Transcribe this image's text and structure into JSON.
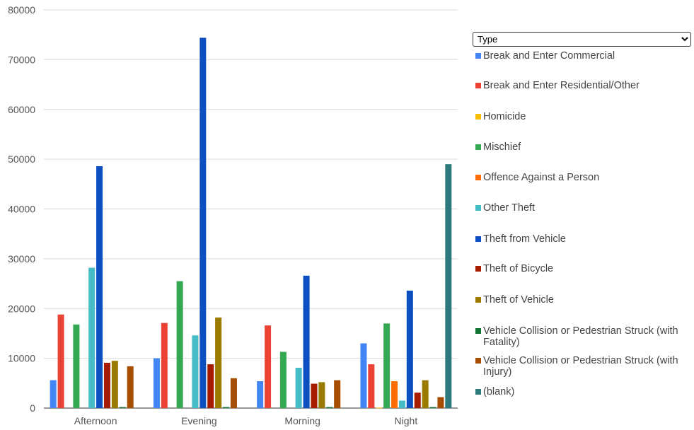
{
  "filter": {
    "selected": "Type"
  },
  "chart_data": {
    "type": "bar",
    "title": "",
    "xlabel": "",
    "ylabel": "",
    "ylim": [
      0,
      80000
    ],
    "yticks": [
      "0",
      "10000",
      "20000",
      "30000",
      "40000",
      "50000",
      "60000",
      "70000",
      "80000"
    ],
    "categories": [
      "Afternoon",
      "Evening",
      "Morning",
      "Night"
    ],
    "legend_position": "right",
    "series": [
      {
        "name": "Break and Enter Commercial",
        "color": "#4285f4",
        "values": [
          5600,
          10000,
          5400,
          13000
        ]
      },
      {
        "name": "Break and Enter Residential/Other",
        "color": "#ea4335",
        "values": [
          18800,
          17100,
          16600,
          8800
        ]
      },
      {
        "name": "Homicide",
        "color": "#fbbc04",
        "values": [
          0,
          0,
          0,
          100
        ]
      },
      {
        "name": "Mischief",
        "color": "#34a853",
        "values": [
          16800,
          25500,
          11300,
          17000
        ]
      },
      {
        "name": "Offence Against a Person",
        "color": "#ff6d01",
        "values": [
          0,
          0,
          0,
          5400
        ]
      },
      {
        "name": "Other Theft",
        "color": "#46bdc6",
        "values": [
          28200,
          14600,
          8100,
          1500
        ]
      },
      {
        "name": "Theft from Vehicle",
        "color": "#0b4fc0",
        "values": [
          48600,
          74400,
          26600,
          23600
        ]
      },
      {
        "name": "Theft of Bicycle",
        "color": "#a61c00",
        "values": [
          9100,
          8800,
          4900,
          3100
        ]
      },
      {
        "name": "Theft of Vehicle",
        "color": "#9a7b00",
        "values": [
          9500,
          18200,
          5200,
          5600
        ]
      },
      {
        "name": "Vehicle Collision or Pedestrian Struck (with Fatality)",
        "color": "#137333",
        "values": [
          200,
          200,
          200,
          200
        ]
      },
      {
        "name": "Vehicle Collision or Pedestrian Struck (with Injury)",
        "color": "#a64d00",
        "values": [
          8400,
          6000,
          5600,
          2200
        ]
      },
      {
        "name": "(blank)",
        "color": "#2c7a7b",
        "values": [
          0,
          0,
          0,
          49000
        ]
      }
    ]
  }
}
